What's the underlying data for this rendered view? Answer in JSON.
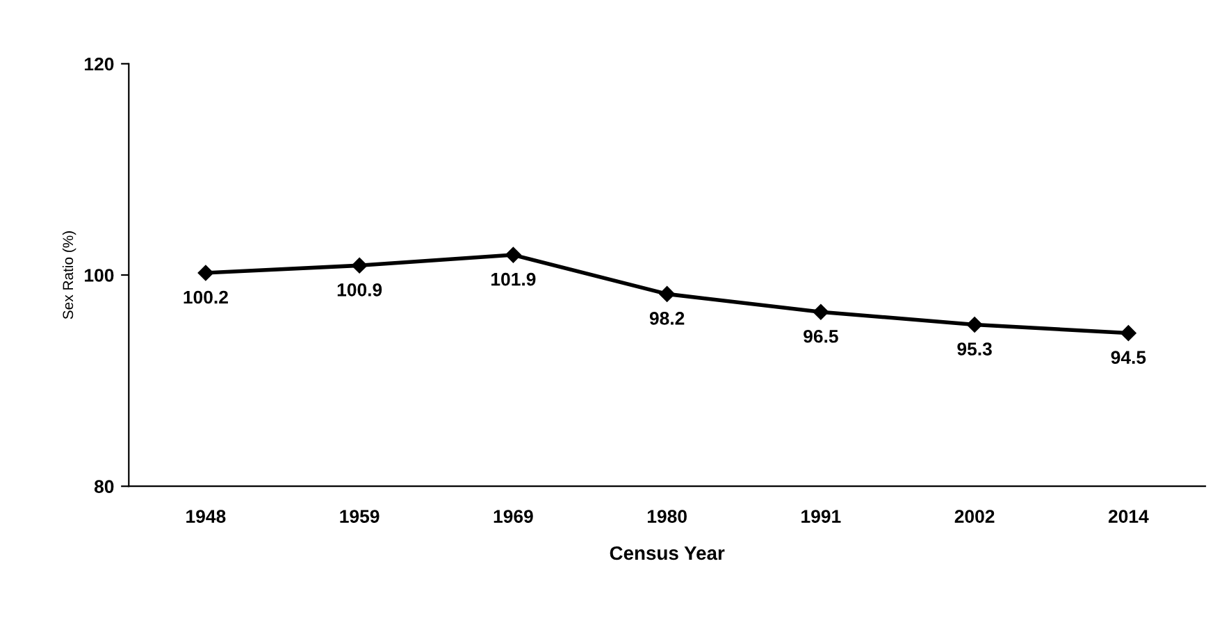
{
  "chart_data": {
    "type": "line",
    "xlabel": "Census Year",
    "ylabel": "Sex Ratio (%)",
    "categories": [
      "1948",
      "1959",
      "1969",
      "1980",
      "1991",
      "2002",
      "2014"
    ],
    "series": [
      {
        "color": "#000000",
        "values": [
          100.2,
          100.9,
          101.9,
          98.2,
          96.5,
          95.3,
          94.5
        ]
      }
    ],
    "ylim": [
      80,
      120
    ],
    "yticks": [
      80,
      100,
      120
    ],
    "marker": "diamond",
    "line_style": "solid",
    "data_labels": true,
    "grid": false,
    "legend": false
  }
}
